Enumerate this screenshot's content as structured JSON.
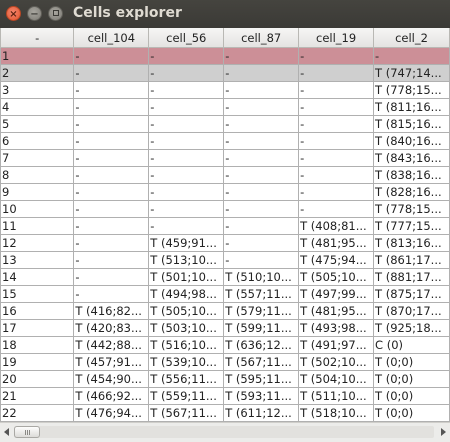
{
  "window": {
    "title": "Cells explorer",
    "close_glyph": "×",
    "minimize_glyph": "−"
  },
  "table": {
    "columns": [
      "-",
      "cell_104",
      "cell_56",
      "cell_87",
      "cell_19",
      "cell_2"
    ],
    "rows": [
      [
        "1",
        "-",
        "-",
        "-",
        "-",
        "-"
      ],
      [
        "2",
        "-",
        "-",
        "-",
        "-",
        "T (747;14..."
      ],
      [
        "3",
        "-",
        "-",
        "-",
        "-",
        "T (778;15..."
      ],
      [
        "4",
        "-",
        "-",
        "-",
        "-",
        "T (811;16..."
      ],
      [
        "5",
        "-",
        "-",
        "-",
        "-",
        "T (815;16..."
      ],
      [
        "6",
        "-",
        "-",
        "-",
        "-",
        "T (840;16..."
      ],
      [
        "7",
        "-",
        "-",
        "-",
        "-",
        "T (843;16..."
      ],
      [
        "8",
        "-",
        "-",
        "-",
        "-",
        "T (838;16..."
      ],
      [
        "9",
        "-",
        "-",
        "-",
        "-",
        "T (828;16..."
      ],
      [
        "10",
        "-",
        "-",
        "-",
        "-",
        "T (778;15..."
      ],
      [
        "11",
        "-",
        "-",
        "-",
        "T (408;81...",
        "T (777;15..."
      ],
      [
        "12",
        "-",
        "T (459;91...",
        "-",
        "T (481;95...",
        "T (813;16..."
      ],
      [
        "13",
        "-",
        "T (513;10...",
        "-",
        "T (475;94...",
        "T (861;17..."
      ],
      [
        "14",
        "-",
        "T (501;10...",
        "T (510;10...",
        "T (505;10...",
        "T (881;17..."
      ],
      [
        "15",
        "-",
        "T (494;98...",
        "T (557;11...",
        "T (497;99...",
        "T (875;17..."
      ],
      [
        "16",
        "T (416;82...",
        "T (505;10...",
        "T (579;11...",
        "T (481;95...",
        "T (870;17..."
      ],
      [
        "17",
        "T (420;83...",
        "T (503;10...",
        "T (599;11...",
        "T (493;98...",
        "T (925;18..."
      ],
      [
        "18",
        "T (442;88...",
        "T (516;10...",
        "T (636;12...",
        "T (491;97...",
        "C (0)"
      ],
      [
        "19",
        "T (457;91...",
        "T (539;10...",
        "T (567;11...",
        "T (502;10...",
        "T (0;0)"
      ],
      [
        "20",
        "T (454;90...",
        "T (556;11...",
        "T (595;11...",
        "T (504;10...",
        "T (0;0)"
      ],
      [
        "21",
        "T (466;92...",
        "T (559;11...",
        "T (593;11...",
        "T (511;10...",
        "T (0;0)"
      ],
      [
        "22",
        "T (476;94...",
        "T (567;11...",
        "T (611;12...",
        "T (518;10...",
        "T (0;0)"
      ]
    ],
    "selected_row_index": 0,
    "highlighted_row_index": 1,
    "selected_color": "#cc8f97",
    "highlighted_color": "#cfcfcf"
  },
  "colors": {
    "titlebar": "#3c3b37",
    "title_text": "#dfdbd2",
    "close_button": "#e95b32"
  },
  "scrollbar": {
    "horizontal_position": 0
  }
}
